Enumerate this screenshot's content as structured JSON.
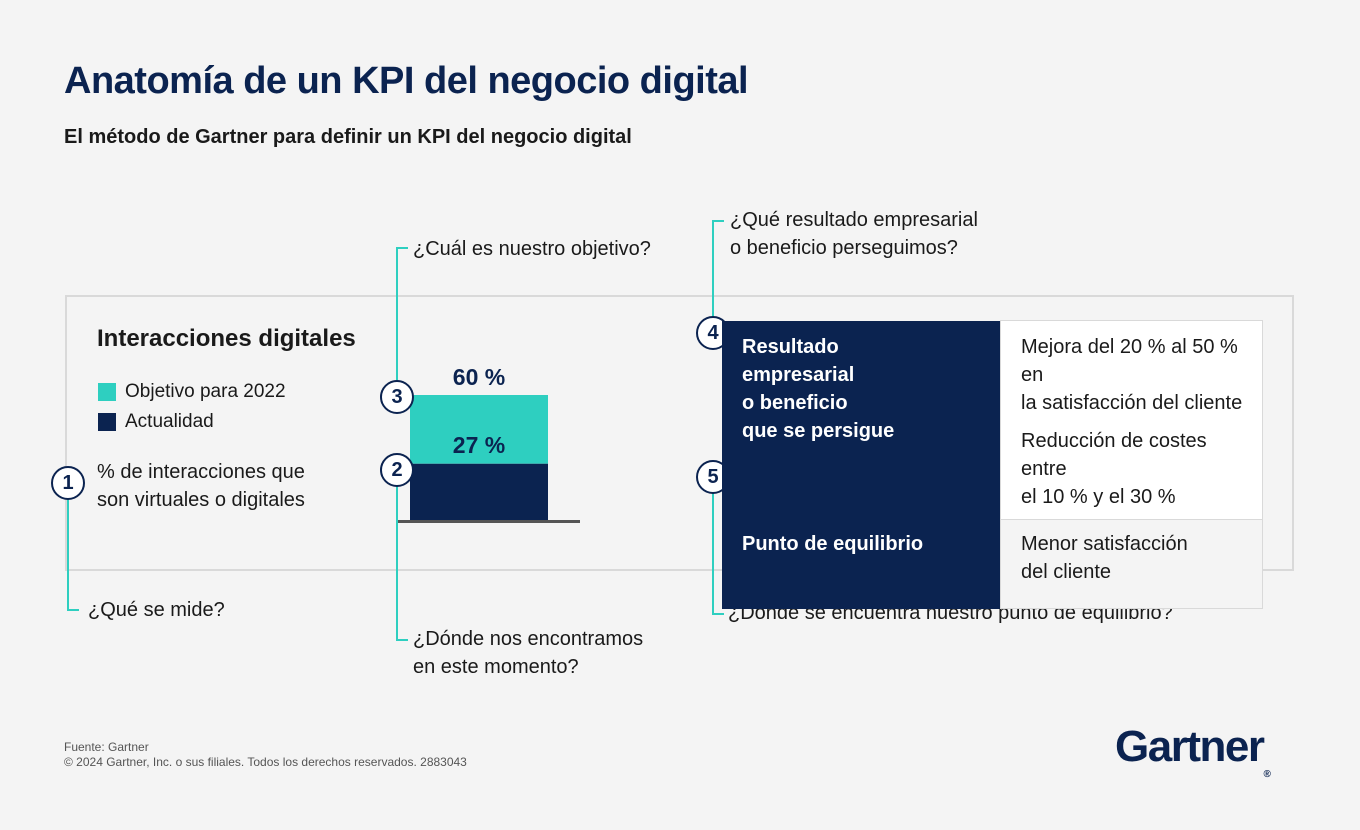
{
  "title": "Anatomía de un KPI del negocio digital",
  "subtitle": "El método de Gartner para definir un KPI del negocio digital",
  "callouts": {
    "c1": "¿Qué se mide?",
    "c2_line1": "¿Dónde nos encontramos",
    "c2_line2": "en este momento?",
    "c3": "¿Cuál es nuestro objetivo?",
    "c4_line1": "¿Qué resultado empresarial",
    "c4_line2": "o beneficio perseguimos?",
    "c5": "¿Dónde se encuentra nuestro punto de equilibrio?"
  },
  "steps": [
    "1",
    "2",
    "3",
    "4",
    "5"
  ],
  "chart": {
    "title": "Interacciones digitales",
    "legend": [
      {
        "label": "Objetivo para 2022",
        "color": "#2ecfc0"
      },
      {
        "label": "Actualidad",
        "color": "#0b2350"
      }
    ],
    "measure_line1": "% de interacciones que",
    "measure_line2": "son virtuales o digitales"
  },
  "chart_data": {
    "type": "bar",
    "categories": [
      ""
    ],
    "series": [
      {
        "name": "Objetivo para 2022",
        "values": [
          60
        ],
        "label": "60 %"
      },
      {
        "name": "Actualidad",
        "values": [
          27
        ],
        "label": "27 %"
      }
    ],
    "ylim": [
      0,
      60
    ]
  },
  "kpi_table": {
    "rows": [
      {
        "head_lines": [
          "Resultado",
          "empresarial",
          "o beneficio",
          "que se persigue"
        ],
        "body_lines": [
          [
            "Mejora del 20 % al 50 % en",
            "la satisfacción del cliente"
          ],
          [
            "Reducción de costes entre",
            "el 10 % y el 30 %"
          ]
        ]
      },
      {
        "head_lines": [
          "Punto de equilibrio"
        ],
        "body_lines": [
          [
            "Menor satisfacción",
            "del cliente"
          ]
        ]
      }
    ]
  },
  "footer": {
    "source": "Fuente: Gartner",
    "copyright": "© 2024 Gartner, Inc. o sus filiales. Todos los derechos reservados. 2883043"
  },
  "logo": {
    "text": "Gartner",
    "mark": "®"
  },
  "colors": {
    "navy": "#0b2350",
    "teal": "#2ecfc0",
    "panel_border": "#d9d9d9"
  }
}
